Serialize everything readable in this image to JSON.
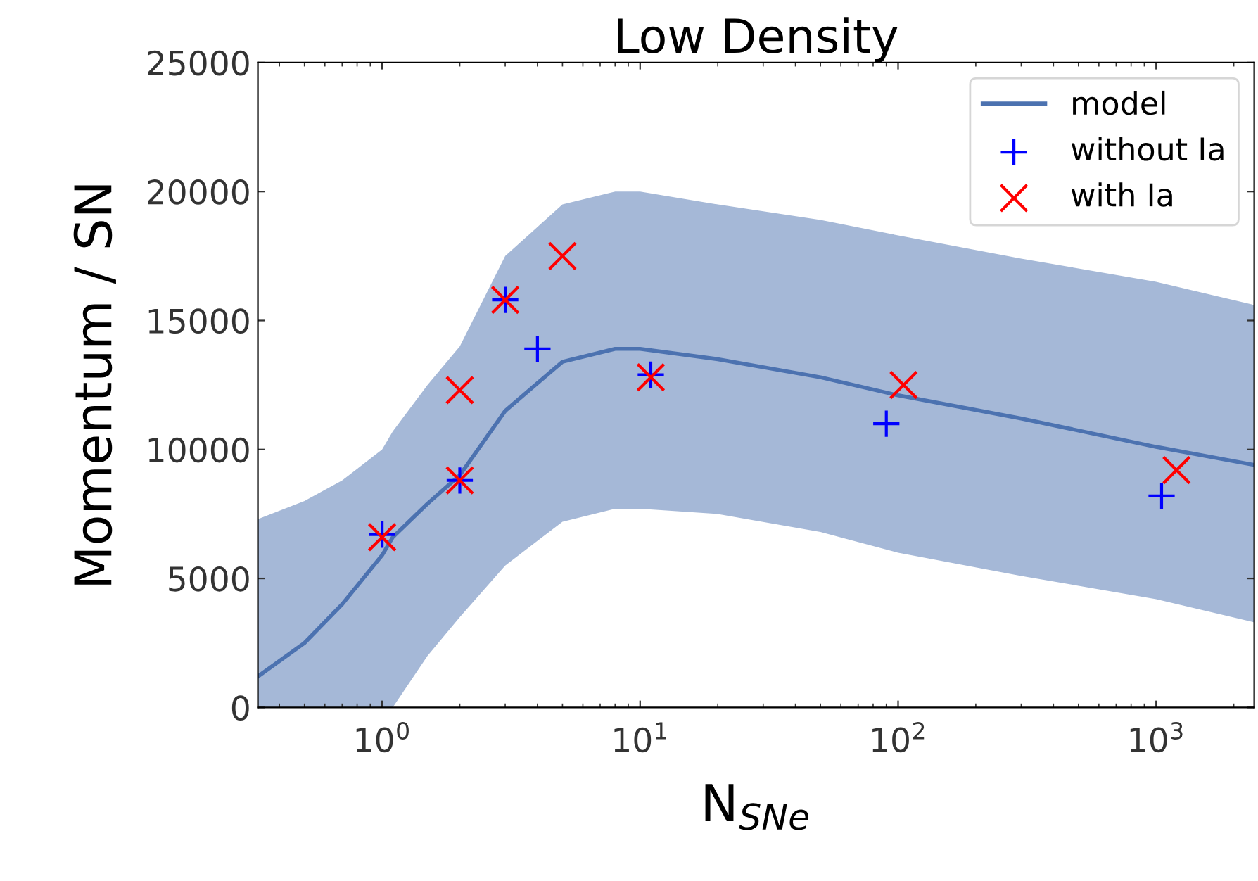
{
  "chart_data": {
    "type": "line",
    "title": "Low Density",
    "xlabel": "N$_{SNe}$",
    "ylabel": "Momentum / SN",
    "log": "x",
    "xlim": [
      0.33,
      2400
    ],
    "xticks": [
      {
        "value": 1,
        "label": "10$^{0}$"
      },
      {
        "value": 10,
        "label": "10$^{1}$"
      },
      {
        "value": 100,
        "label": "10$^{2}$"
      },
      {
        "value": 1000,
        "label": "10$^{3}$"
      }
    ],
    "ylim": [
      0,
      25000
    ],
    "yticks": [
      0,
      5000,
      10000,
      15000,
      20000,
      25000
    ],
    "grid": false,
    "legend": "top right",
    "series": [
      {
        "name": "model",
        "color": "#4c72b0",
        "marker": "none",
        "line_style": "solid",
        "x": [
          0.33,
          0.5,
          0.7,
          1,
          1.1,
          1.5,
          2,
          3,
          5,
          8,
          10,
          20,
          50,
          100,
          300,
          1000,
          2400
        ],
        "values": [
          1200,
          2500,
          4000,
          5900,
          6600,
          7900,
          9000,
          11500,
          13400,
          13900,
          13900,
          13500,
          12800,
          12100,
          11200,
          10100,
          9400
        ],
        "lower": [
          0,
          0,
          0,
          0,
          0,
          2000,
          3500,
          5500,
          7200,
          7700,
          7700,
          7500,
          6800,
          6000,
          5100,
          4200,
          3300
        ],
        "upper": [
          7300,
          8000,
          8800,
          10000,
          10700,
          12500,
          14000,
          17500,
          19500,
          20000,
          20000,
          19500,
          18900,
          18300,
          17400,
          16500,
          15600
        ]
      },
      {
        "name": "without Ia",
        "type": "scatter",
        "color": "#0000ff",
        "marker": "plus",
        "x": [
          1,
          2,
          3,
          4,
          11,
          90,
          1050
        ],
        "values": [
          6700,
          8800,
          15800,
          13900,
          12900,
          11000,
          8200
        ]
      },
      {
        "name": "with Ia",
        "type": "scatter",
        "color": "#ff0000",
        "marker": "cross",
        "x": [
          1,
          2,
          2,
          3,
          5,
          11,
          105,
          1200
        ],
        "values": [
          6600,
          12300,
          8800,
          15800,
          17500,
          12800,
          12500,
          9200
        ]
      }
    ]
  }
}
